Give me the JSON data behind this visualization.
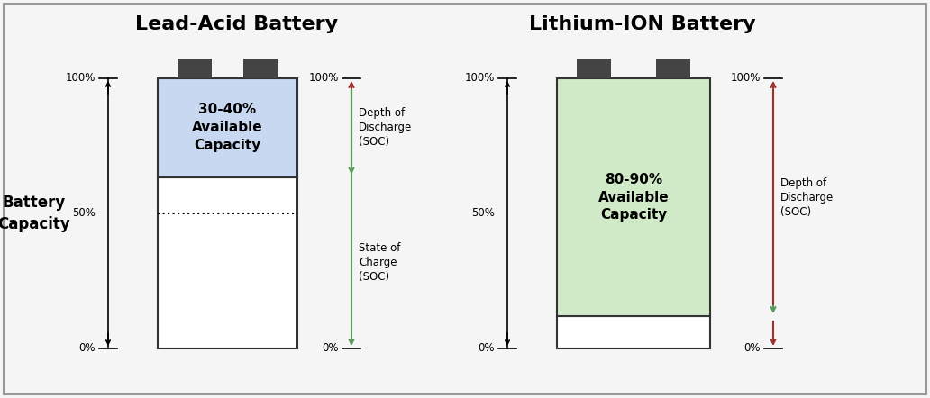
{
  "title_left": "Lead-Acid Battery",
  "title_right": "Lithium-ION Battery",
  "battery_capacity_label": "Battery\nCapacity",
  "label_left_available": "30-40%\nAvailable\nCapacity",
  "label_right_available": "80-90%\nAvailable\nCapacity",
  "dod_label_la": "Depth of\nDischarge\n(SOC)",
  "soc_label_la": "State of\nCharge\n(SOC)",
  "dod_label_li": "Depth of\nDischarge\n(SOC)",
  "color_lead_acid_fill": "#c8d8f0",
  "color_lithium_fill": "#d0eac8",
  "color_terminal": "#444444",
  "color_arrow_black": "#000000",
  "color_arrow_green": "#5a9a5a",
  "color_arrow_red": "#a03030",
  "bg_color": "#f5f5f5",
  "border_color": "#999999",
  "fig_width": 10.32,
  "fig_height": 4.42,
  "dpi": 100
}
